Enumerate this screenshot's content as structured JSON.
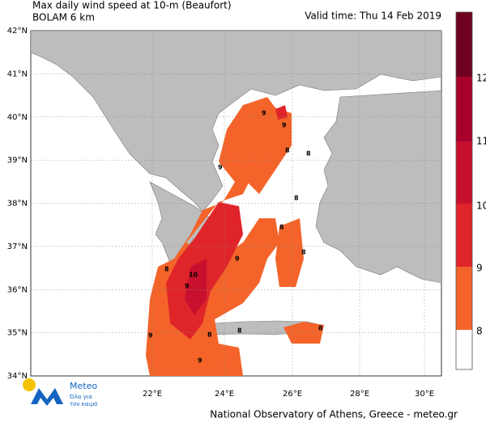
{
  "header": {
    "title": "Max daily wind speed at 10-m (Beaufort)",
    "subtitle": "BOLAM 6 km",
    "valid_time": "Valid time: Thu 14 Feb 2019"
  },
  "map": {
    "lat_labels": [
      "42°N",
      "41°N",
      "40°N",
      "39°N",
      "38°N",
      "37°N",
      "36°N",
      "35°N",
      "34°N"
    ],
    "lon_labels": [
      "22°E",
      "24°E",
      "26°E",
      "28°E",
      "30°E"
    ],
    "contour_labels": [
      "9",
      "9",
      "8",
      "8",
      "9",
      "8",
      "8",
      "10",
      "9",
      "8",
      "9",
      "8",
      "9",
      "8",
      "8",
      "8",
      "9"
    ]
  },
  "colorbar": {
    "labels": [
      "12",
      "11",
      "10",
      "9",
      "8"
    ]
  },
  "logo": {
    "name": "Meteo",
    "tagline_1": "Όλα για",
    "tagline_2": "τον καιρό"
  },
  "footer": "National Observatory of Athens, Greece - meteo.gr"
}
